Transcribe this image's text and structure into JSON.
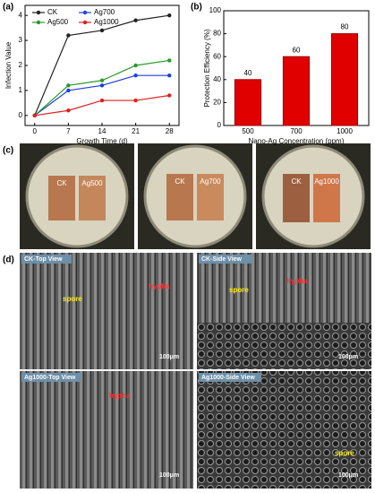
{
  "panels": [
    "(a)",
    "(b)",
    "(c)",
    "(d)"
  ],
  "chart_data": [
    {
      "type": "line",
      "xlabel": "Growth Time (d)",
      "ylabel": "Infection Value",
      "x": [
        0,
        7,
        14,
        21,
        28
      ],
      "xlim": [
        -2,
        30
      ],
      "xticks": [
        0,
        7,
        14,
        21,
        28
      ],
      "ylim": [
        -0.4,
        4.4
      ],
      "yticks": [
        0,
        1,
        2,
        3,
        4
      ],
      "legend": "upper left",
      "series": [
        {
          "name": "CK",
          "color": "#222222",
          "values": [
            0,
            3.2,
            3.4,
            3.8,
            4.0
          ]
        },
        {
          "name": "Ag700",
          "color": "#1f3fe0",
          "values": [
            0,
            1.0,
            1.2,
            1.6,
            1.6
          ]
        },
        {
          "name": "Ag500",
          "color": "#2a9a2a",
          "values": [
            0,
            1.2,
            1.4,
            2.0,
            2.2
          ]
        },
        {
          "name": "Ag1000",
          "color": "#e02020",
          "values": [
            0,
            0.2,
            0.6,
            0.6,
            0.8
          ]
        }
      ]
    },
    {
      "type": "bar",
      "xlabel": "Nano-Ag Concentration (ppm)",
      "ylabel": "Protection Efficiency (%)",
      "categories": [
        "500",
        "700",
        "1000"
      ],
      "values": [
        40,
        60,
        80
      ],
      "color": "#e00000",
      "ylim": [
        0,
        100
      ],
      "yticks": [
        0,
        20,
        40,
        60,
        80,
        100
      ]
    }
  ],
  "photos": [
    {
      "labels": [
        "CK",
        "Ag500"
      ]
    },
    {
      "labels": [
        "CK",
        "Ag700"
      ]
    },
    {
      "labels": [
        "CK",
        "Ag1000"
      ]
    }
  ],
  "sem": [
    {
      "title": "CK-Top View",
      "annotations": [
        "spore",
        "hypha"
      ],
      "scale": "100μm"
    },
    {
      "title": "CK-Side View",
      "annotations": [
        "spore",
        "hypha"
      ],
      "scale": "100μm"
    },
    {
      "title": "Ag1000-Top View",
      "annotations": [
        "hypha"
      ],
      "scale": "100μm"
    },
    {
      "title": "Ag1000-Side View",
      "annotations": [
        "spore"
      ],
      "scale": "100μm"
    }
  ]
}
